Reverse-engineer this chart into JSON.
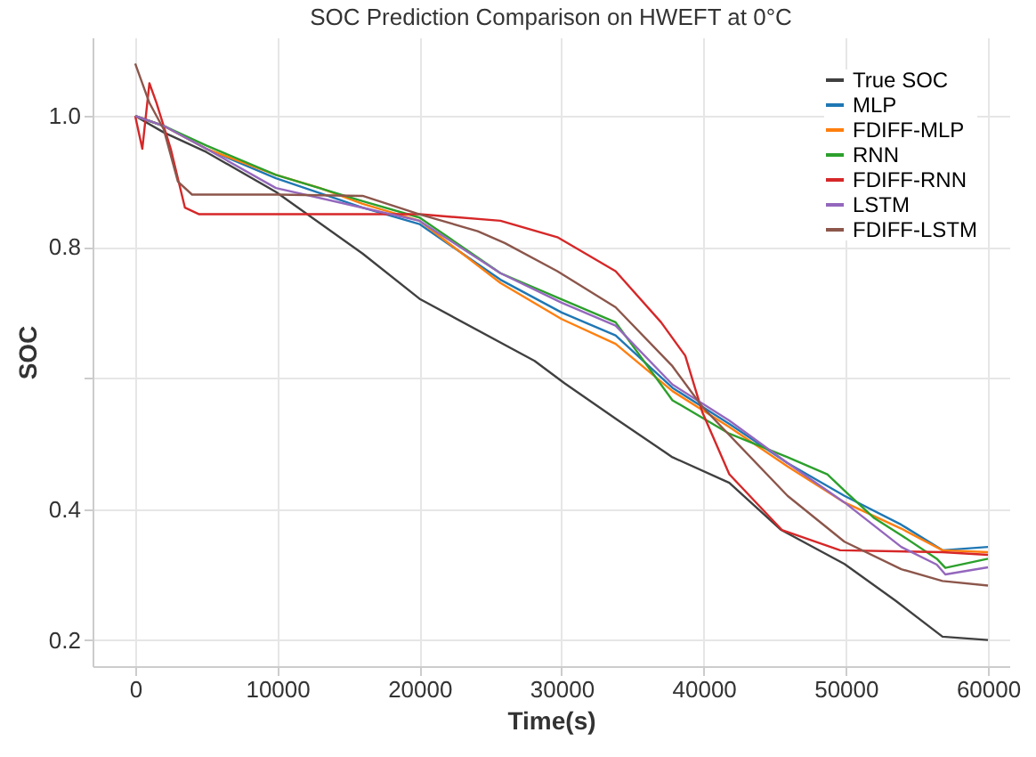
{
  "chart_data": {
    "type": "line",
    "title": "SOC Prediction Comparison on HWEFT at 0°C",
    "xlabel": "Time(s)",
    "ylabel": "SOC",
    "xlim": [
      -3000,
      61500
    ],
    "xticks": [
      0,
      10000,
      20000,
      30000,
      40000,
      50000,
      60000
    ],
    "ylim": [
      0.16,
      1.12
    ],
    "yticks": [
      0.2,
      0.4,
      {
        "value": 0.6,
        "label": null
      },
      0.8,
      {
        "value": 1,
        "label": "1.0"
      }
    ],
    "grid": true,
    "legend": "top right",
    "series": [
      {
        "name": "True SOC",
        "color": "#404040",
        "x": [
          0,
          2000,
          5000,
          9900,
          16000,
          20000,
          28100,
          30200,
          34000,
          37800,
          41800,
          45450,
          49900,
          53500,
          56800,
          60000
        ],
        "values": [
          1.0,
          0.975,
          0.945,
          0.884,
          0.79,
          0.721,
          0.626,
          0.592,
          0.535,
          0.479,
          0.44,
          0.368,
          0.316,
          0.26,
          0.205,
          0.2
        ]
      },
      {
        "name": "MLP",
        "color": "#1f77b4",
        "x": [
          0,
          2000,
          5000,
          9900,
          16000,
          20000,
          25700,
          30000,
          33800,
          37800,
          41800,
          45900,
          49900,
          53900,
          56800,
          60000
        ],
        "values": [
          1.0,
          0.985,
          0.95,
          0.905,
          0.86,
          0.835,
          0.75,
          0.7,
          0.665,
          0.585,
          0.53,
          0.47,
          0.42,
          0.376,
          0.337,
          0.342
        ]
      },
      {
        "name": "FDIFF-MLP",
        "color": "#ff7f0e",
        "x": [
          0,
          2000,
          5000,
          9900,
          13000,
          16000,
          20000,
          25700,
          30000,
          33800,
          37800,
          41800,
          45900,
          49900,
          53900,
          56800,
          60000
        ],
        "values": [
          1.0,
          0.985,
          0.95,
          0.91,
          0.89,
          0.866,
          0.84,
          0.745,
          0.69,
          0.652,
          0.58,
          0.525,
          0.465,
          0.41,
          0.37,
          0.337,
          0.334
        ]
      },
      {
        "name": "RNN",
        "color": "#2ca02c",
        "x": [
          0,
          2000,
          5000,
          9900,
          16000,
          20000,
          25700,
          30000,
          33800,
          37800,
          41800,
          45900,
          48700,
          49900,
          52000,
          53900,
          56400,
          57000,
          60000
        ],
        "values": [
          1.0,
          0.985,
          0.955,
          0.91,
          0.87,
          0.845,
          0.76,
          0.72,
          0.685,
          0.566,
          0.515,
          0.479,
          0.453,
          0.428,
          0.386,
          0.36,
          0.324,
          0.31,
          0.324
        ]
      },
      {
        "name": "FDIFF-RNN",
        "color": "#d62728",
        "x": [
          0,
          500,
          1000,
          1500,
          2500,
          3500,
          4500,
          10000,
          20000,
          25700,
          29700,
          33800,
          37000,
          38700,
          39900,
          41800,
          45500,
          49600,
          56800,
          60000
        ],
        "values": [
          1.0,
          0.95,
          1.05,
          1.02,
          0.95,
          0.86,
          0.85,
          0.85,
          0.85,
          0.84,
          0.815,
          0.763,
          0.685,
          0.634,
          0.548,
          0.453,
          0.368,
          0.337,
          0.334,
          0.33
        ]
      },
      {
        "name": "LSTM",
        "color": "#9467bd",
        "x": [
          0,
          2000,
          5000,
          9900,
          16000,
          20000,
          25700,
          30000,
          33800,
          37800,
          41800,
          45900,
          49900,
          53900,
          56400,
          57000,
          60000
        ],
        "values": [
          1.0,
          0.985,
          0.95,
          0.89,
          0.86,
          0.84,
          0.76,
          0.715,
          0.68,
          0.59,
          0.535,
          0.47,
          0.41,
          0.342,
          0.315,
          0.3,
          0.311
        ]
      },
      {
        "name": "FDIFF-LSTM",
        "color": "#8c564b",
        "x": [
          0,
          1000,
          2000,
          3000,
          4000,
          10000,
          16000,
          20000,
          24100,
          26000,
          29700,
          33800,
          37800,
          39900,
          45900,
          49900,
          53900,
          56800,
          60000
        ],
        "values": [
          1.08,
          1.02,
          0.98,
          0.9,
          0.88,
          0.88,
          0.878,
          0.85,
          0.824,
          0.806,
          0.763,
          0.708,
          0.618,
          0.556,
          0.42,
          0.35,
          0.308,
          0.29,
          0.283
        ]
      }
    ]
  }
}
